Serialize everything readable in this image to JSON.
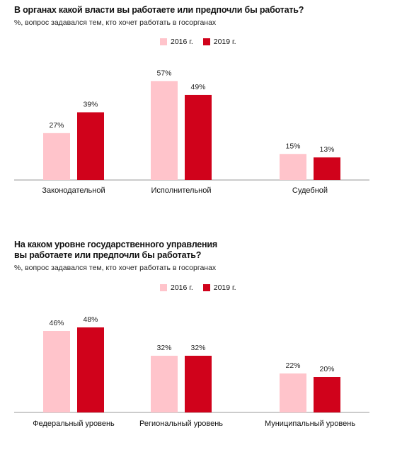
{
  "colors": {
    "s2016": "#ffc4cb",
    "s2019": "#d0021b",
    "axis": "#999999"
  },
  "chart_data": [
    {
      "type": "bar",
      "title": "В органах какой власти вы работаете или предпочли бы работать?",
      "subtitle": "%, вопрос задавался тем, кто хочет работать в госорганах",
      "categories": [
        "Законодательной",
        "Исполнительной",
        "Судебной"
      ],
      "series": [
        {
          "name": "2016 г.",
          "values": [
            27,
            57,
            15
          ],
          "labels": [
            "27%",
            "57%",
            "15%"
          ]
        },
        {
          "name": "2019 г.",
          "values": [
            39,
            49,
            13
          ],
          "labels": [
            "39%",
            "49%",
            "13%"
          ]
        }
      ],
      "ylim": [
        0,
        60
      ],
      "legend": "top-center",
      "grid": false
    },
    {
      "type": "bar",
      "title_lines": [
        "На каком уровне государственного управления",
        "вы работаете или предпочли бы работать?"
      ],
      "subtitle": "%, вопрос задавался тем, кто хочет работать в госорганах",
      "categories": [
        "Федеральный уровень",
        "Региональный уровень",
        "Муниципальный уровень"
      ],
      "series": [
        {
          "name": "2016 г.",
          "values": [
            46,
            32,
            22
          ],
          "labels": [
            "46%",
            "32%",
            "22%"
          ]
        },
        {
          "name": "2019 г.",
          "values": [
            48,
            32,
            20
          ],
          "labels": [
            "48%",
            "32%",
            "20%"
          ]
        }
      ],
      "ylim": [
        0,
        50
      ],
      "legend": "top-center",
      "grid": false
    }
  ]
}
